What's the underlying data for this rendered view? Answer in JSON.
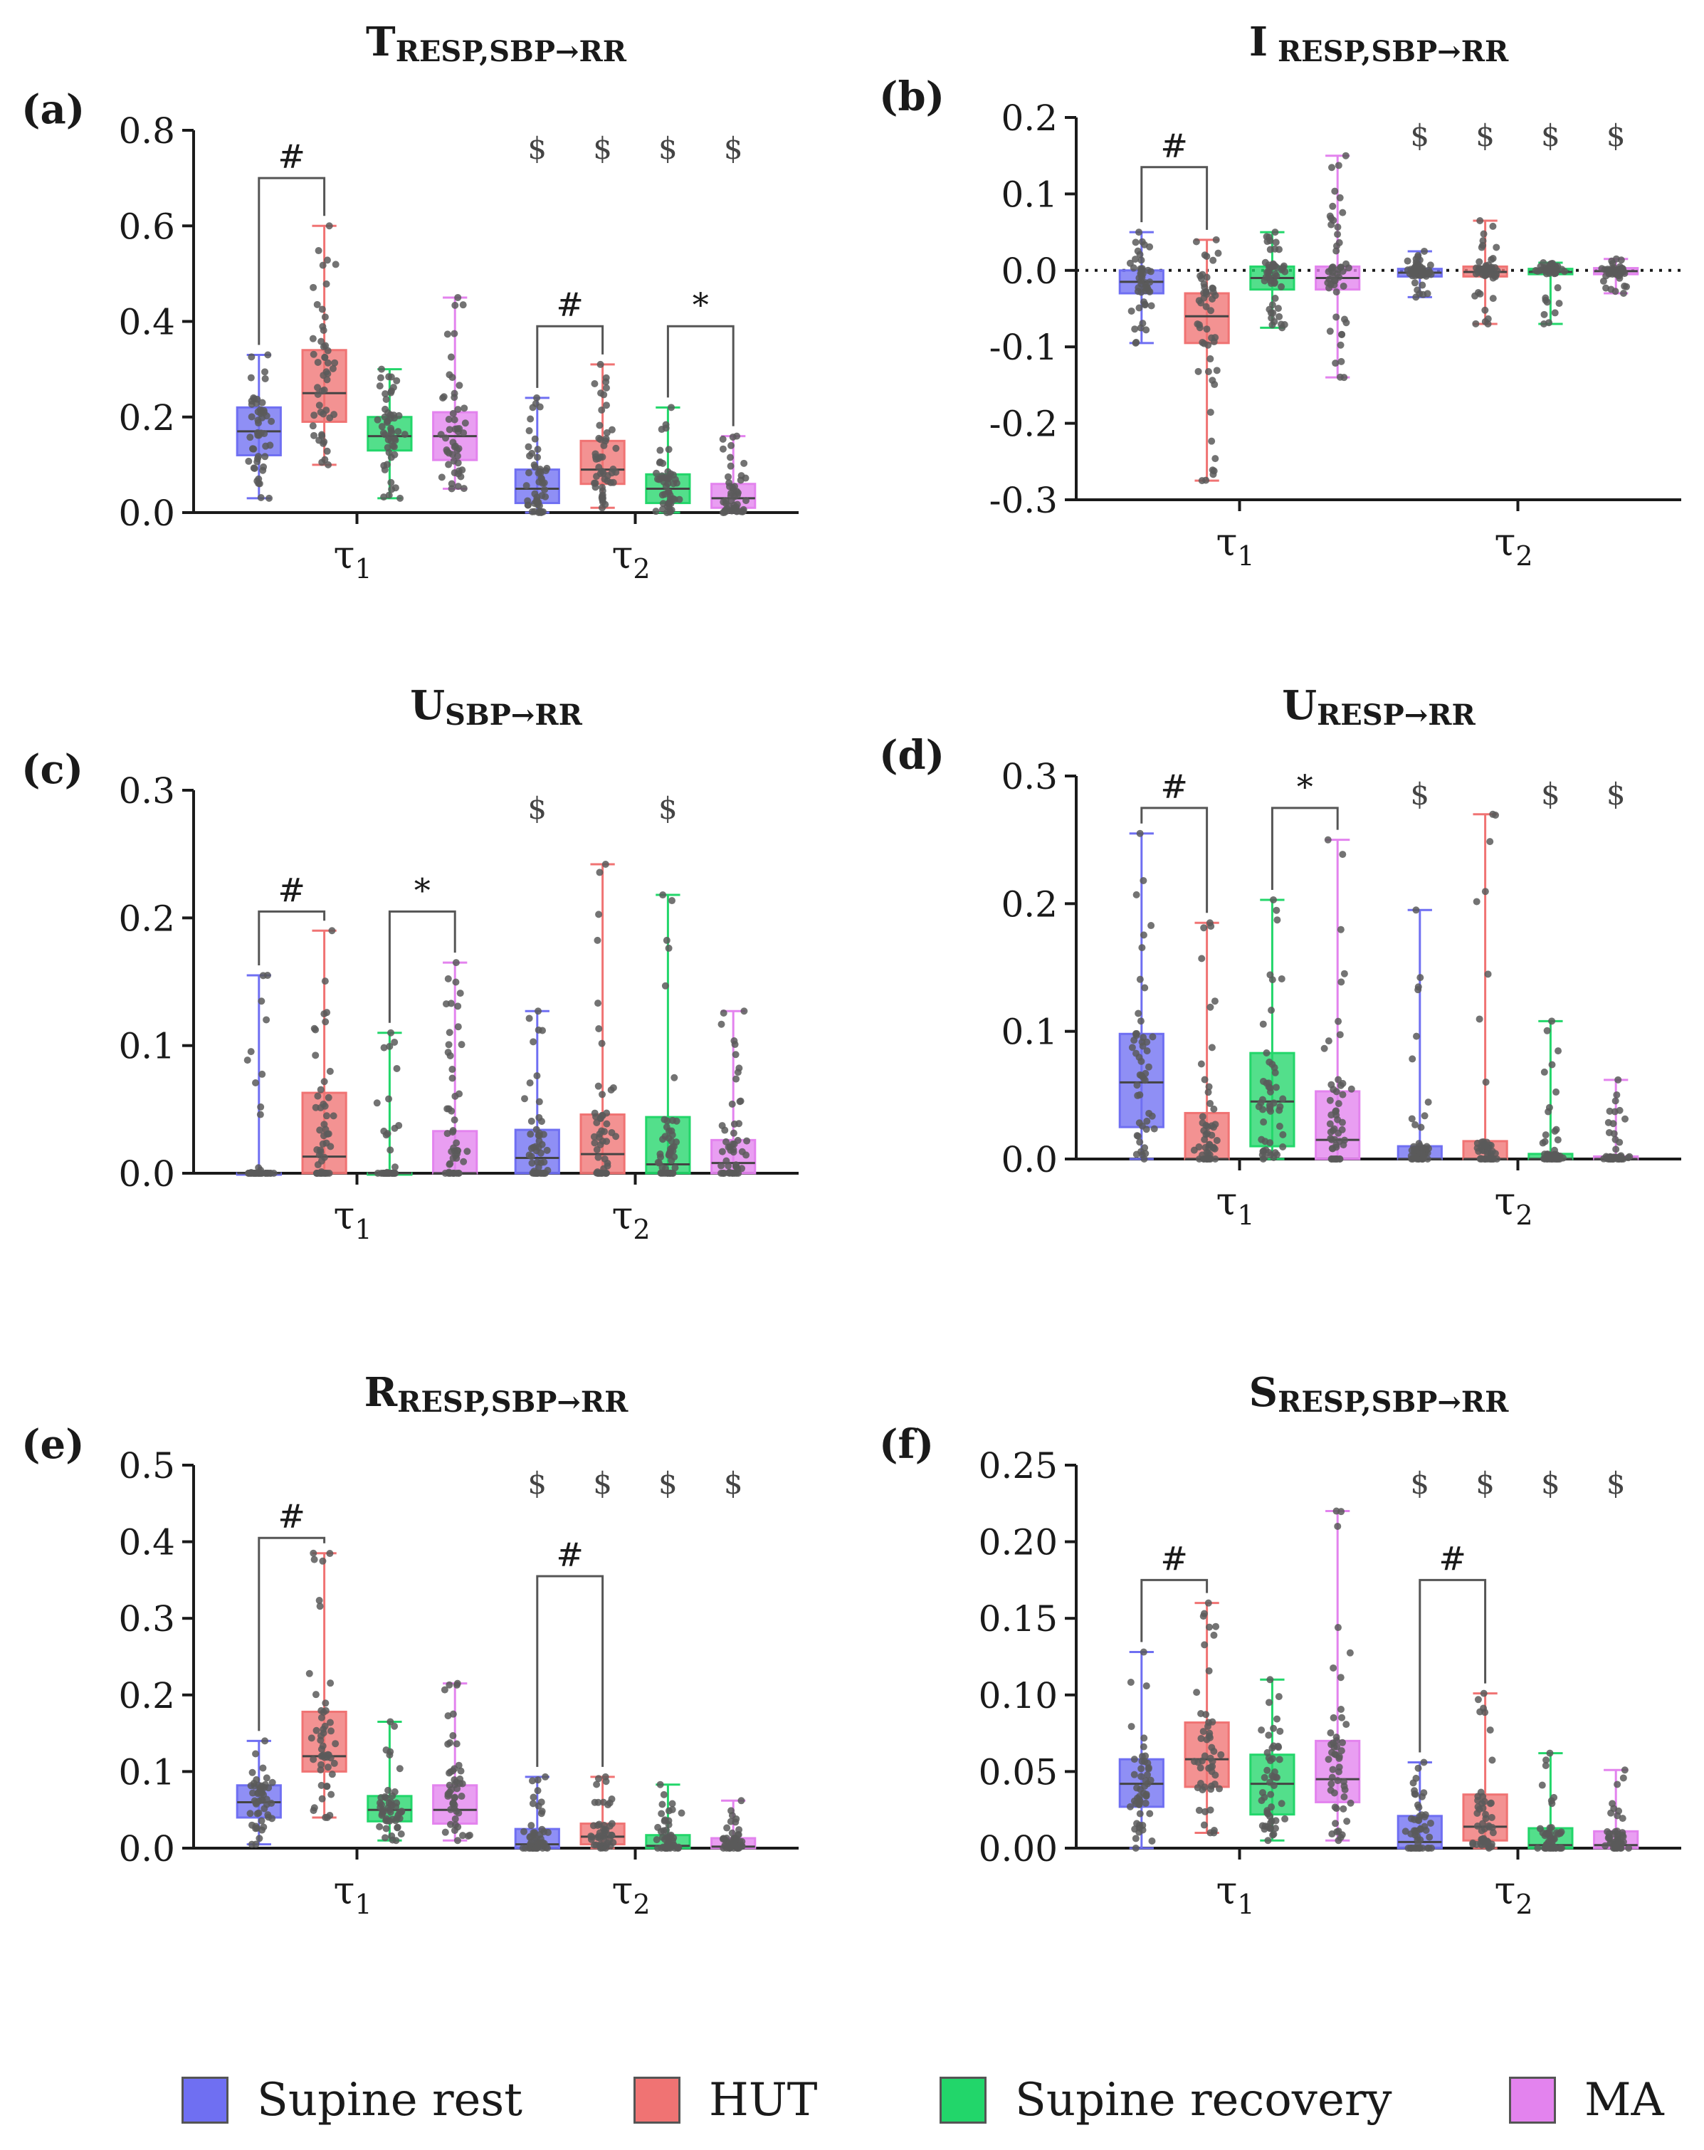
{
  "colors": {
    "supine_rest": "#6f6ff2",
    "hut": "#f07373",
    "supine_recovery": "#22d66a",
    "ma": "#e383ee",
    "points": "#5a5a5a",
    "axis": "#1a1a1a"
  },
  "legend": {
    "items": [
      {
        "label": "Supine rest",
        "color": "#6f6ff2"
      },
      {
        "label": "HUT",
        "color": "#f07373"
      },
      {
        "label": "Supine recovery",
        "color": "#22d66a"
      },
      {
        "label": "MA",
        "color": "#e383ee"
      }
    ]
  },
  "chart_data": [
    {
      "panel": "(a)",
      "title": {
        "main": "T",
        "sub": "RESP,SBP→RR"
      },
      "type": "box",
      "categories": [
        "τ1",
        "τ2"
      ],
      "series": [
        "Supine rest",
        "HUT",
        "Supine recovery",
        "MA"
      ],
      "ylim": [
        0,
        0.8
      ],
      "yticks": [
        "0.0",
        "0.2",
        "0.4",
        "0.6",
        "0.8"
      ],
      "zero_line": false,
      "boxes": [
        [
          {
            "min": 0.03,
            "q1": 0.12,
            "median": 0.17,
            "q3": 0.22,
            "max": 0.33
          },
          {
            "min": 0.1,
            "q1": 0.19,
            "median": 0.25,
            "q3": 0.34,
            "max": 0.6
          },
          {
            "min": 0.03,
            "q1": 0.13,
            "median": 0.16,
            "q3": 0.2,
            "max": 0.3
          },
          {
            "min": 0.05,
            "q1": 0.11,
            "median": 0.16,
            "q3": 0.21,
            "max": 0.45
          }
        ],
        [
          {
            "min": 0.0,
            "q1": 0.02,
            "median": 0.05,
            "q3": 0.09,
            "max": 0.24
          },
          {
            "min": 0.01,
            "q1": 0.06,
            "median": 0.09,
            "q3": 0.15,
            "max": 0.31
          },
          {
            "min": 0.0,
            "q1": 0.02,
            "median": 0.05,
            "q3": 0.08,
            "max": 0.22
          },
          {
            "min": 0.0,
            "q1": 0.01,
            "median": 0.03,
            "q3": 0.06,
            "max": 0.16
          }
        ]
      ],
      "markers": [
        {
          "text": "#",
          "from": [
            0,
            0
          ],
          "to": [
            0,
            1
          ],
          "y": 0.7
        },
        {
          "text": "#",
          "from": [
            1,
            0
          ],
          "to": [
            1,
            1
          ],
          "y": 0.39
        },
        {
          "text": "*",
          "from": [
            1,
            2
          ],
          "to": [
            1,
            3
          ],
          "y": 0.39
        }
      ],
      "dollars": [
        {
          "group": 1,
          "box": 0,
          "text": "$"
        },
        {
          "group": 1,
          "box": 1,
          "text": "$"
        },
        {
          "group": 1,
          "box": 2,
          "text": "$"
        },
        {
          "group": 1,
          "box": 3,
          "text": "$"
        }
      ]
    },
    {
      "panel": "(b)",
      "title": {
        "main": "I",
        "sub": " RESP,SBP→RR"
      },
      "type": "box",
      "categories": [
        "τ1",
        "τ2"
      ],
      "series": [
        "Supine rest",
        "HUT",
        "Supine recovery",
        "MA"
      ],
      "ylim": [
        -0.3,
        0.2
      ],
      "yticks": [
        "-0.3",
        "-0.2",
        "-0.1",
        "0.0",
        "0.1",
        "0.2"
      ],
      "zero_line": true,
      "boxes": [
        [
          {
            "min": -0.095,
            "q1": -0.03,
            "median": -0.015,
            "q3": 0.0,
            "max": 0.05
          },
          {
            "min": -0.275,
            "q1": -0.095,
            "median": -0.06,
            "q3": -0.03,
            "max": 0.04
          },
          {
            "min": -0.075,
            "q1": -0.025,
            "median": -0.01,
            "q3": 0.005,
            "max": 0.05
          },
          {
            "min": -0.14,
            "q1": -0.025,
            "median": -0.01,
            "q3": 0.005,
            "max": 0.15
          }
        ],
        [
          {
            "min": -0.035,
            "q1": -0.008,
            "median": -0.003,
            "q3": 0.002,
            "max": 0.025
          },
          {
            "min": -0.07,
            "q1": -0.008,
            "median": -0.002,
            "q3": 0.005,
            "max": 0.065
          },
          {
            "min": -0.07,
            "q1": -0.005,
            "median": -0.002,
            "q3": 0.002,
            "max": 0.01
          },
          {
            "min": -0.03,
            "q1": -0.005,
            "median": -0.001,
            "q3": 0.003,
            "max": 0.015
          }
        ]
      ],
      "markers": [
        {
          "text": "#",
          "from": [
            0,
            0
          ],
          "to": [
            0,
            1
          ],
          "y": 0.135
        }
      ],
      "dollars": [
        {
          "group": 1,
          "box": 0,
          "text": "$"
        },
        {
          "group": 1,
          "box": 1,
          "text": "$"
        },
        {
          "group": 1,
          "box": 2,
          "text": "$"
        },
        {
          "group": 1,
          "box": 3,
          "text": "$"
        }
      ]
    },
    {
      "panel": "(c)",
      "title": {
        "main": "U",
        "sub": "SBP→RR"
      },
      "type": "box",
      "categories": [
        "τ1",
        "τ2"
      ],
      "series": [
        "Supine rest",
        "HUT",
        "Supine recovery",
        "MA"
      ],
      "ylim": [
        0,
        0.3
      ],
      "yticks": [
        "0.0",
        "0.1",
        "0.2",
        "0.3"
      ],
      "zero_line": false,
      "boxes": [
        [
          {
            "min": 0.0,
            "q1": 0.0,
            "median": 0.0,
            "q3": 0.0,
            "max": 0.155
          },
          {
            "min": 0.0,
            "q1": 0.0,
            "median": 0.013,
            "q3": 0.063,
            "max": 0.19
          },
          {
            "min": 0.0,
            "q1": 0.0,
            "median": 0.0,
            "q3": 0.0,
            "max": 0.11
          },
          {
            "min": 0.0,
            "q1": 0.0,
            "median": 0.0,
            "q3": 0.033,
            "max": 0.165
          }
        ],
        [
          {
            "min": 0.0,
            "q1": 0.0,
            "median": 0.012,
            "q3": 0.034,
            "max": 0.127
          },
          {
            "min": 0.0,
            "q1": 0.0,
            "median": 0.015,
            "q3": 0.046,
            "max": 0.242
          },
          {
            "min": 0.0,
            "q1": 0.0,
            "median": 0.007,
            "q3": 0.044,
            "max": 0.218
          },
          {
            "min": 0.0,
            "q1": 0.0,
            "median": 0.008,
            "q3": 0.026,
            "max": 0.127
          }
        ]
      ],
      "markers": [
        {
          "text": "#",
          "from": [
            0,
            0
          ],
          "to": [
            0,
            1
          ],
          "y": 0.205
        },
        {
          "text": "*",
          "from": [
            0,
            2
          ],
          "to": [
            0,
            3
          ],
          "y": 0.205
        }
      ],
      "dollars": [
        {
          "group": 1,
          "box": 0,
          "text": "$"
        },
        {
          "group": 1,
          "box": 2,
          "text": "$"
        }
      ]
    },
    {
      "panel": "(d)",
      "title": {
        "main": "U",
        "sub": "RESP→RR"
      },
      "type": "box",
      "categories": [
        "τ1",
        "τ2"
      ],
      "series": [
        "Supine rest",
        "HUT",
        "Supine recovery",
        "MA"
      ],
      "ylim": [
        0,
        0.3
      ],
      "yticks": [
        "0.0",
        "0.1",
        "0.2",
        "0.3"
      ],
      "zero_line": false,
      "boxes": [
        [
          {
            "min": 0.0,
            "q1": 0.025,
            "median": 0.06,
            "q3": 0.098,
            "max": 0.255
          },
          {
            "min": 0.0,
            "q1": 0.0,
            "median": 0.0,
            "q3": 0.036,
            "max": 0.185
          },
          {
            "min": 0.0,
            "q1": 0.01,
            "median": 0.045,
            "q3": 0.083,
            "max": 0.203
          },
          {
            "min": 0.0,
            "q1": 0.0,
            "median": 0.015,
            "q3": 0.053,
            "max": 0.25
          }
        ],
        [
          {
            "min": 0.0,
            "q1": 0.0,
            "median": 0.0,
            "q3": 0.01,
            "max": 0.195
          },
          {
            "min": 0.0,
            "q1": 0.0,
            "median": 0.0,
            "q3": 0.014,
            "max": 0.27
          },
          {
            "min": 0.0,
            "q1": 0.0,
            "median": 0.0,
            "q3": 0.004,
            "max": 0.108
          },
          {
            "min": 0.0,
            "q1": 0.0,
            "median": 0.0,
            "q3": 0.002,
            "max": 0.062
          }
        ]
      ],
      "markers": [
        {
          "text": "#",
          "from": [
            0,
            0
          ],
          "to": [
            0,
            1
          ],
          "y": 0.275
        },
        {
          "text": "*",
          "from": [
            0,
            2
          ],
          "to": [
            0,
            3
          ],
          "y": 0.275
        }
      ],
      "dollars": [
        {
          "group": 1,
          "box": 0,
          "text": "$"
        },
        {
          "group": 1,
          "box": 2,
          "text": "$"
        },
        {
          "group": 1,
          "box": 3,
          "text": "$"
        }
      ]
    },
    {
      "panel": "(e)",
      "title": {
        "main": "R",
        "sub": "RESP,SBP→RR"
      },
      "type": "box",
      "categories": [
        "τ1",
        "τ2"
      ],
      "series": [
        "Supine rest",
        "HUT",
        "Supine recovery",
        "MA"
      ],
      "ylim": [
        0,
        0.5
      ],
      "yticks": [
        "0.0",
        "0.1",
        "0.2",
        "0.3",
        "0.4",
        "0.5"
      ],
      "zero_line": false,
      "boxes": [
        [
          {
            "min": 0.005,
            "q1": 0.04,
            "median": 0.06,
            "q3": 0.082,
            "max": 0.14
          },
          {
            "min": 0.04,
            "q1": 0.1,
            "median": 0.12,
            "q3": 0.178,
            "max": 0.385
          },
          {
            "min": 0.01,
            "q1": 0.035,
            "median": 0.05,
            "q3": 0.068,
            "max": 0.165
          },
          {
            "min": 0.01,
            "q1": 0.032,
            "median": 0.05,
            "q3": 0.082,
            "max": 0.215
          }
        ],
        [
          {
            "min": 0.0,
            "q1": 0.0,
            "median": 0.005,
            "q3": 0.025,
            "max": 0.093
          },
          {
            "min": 0.0,
            "q1": 0.005,
            "median": 0.015,
            "q3": 0.032,
            "max": 0.093
          },
          {
            "min": 0.0,
            "q1": 0.0,
            "median": 0.003,
            "q3": 0.017,
            "max": 0.083
          },
          {
            "min": 0.0,
            "q1": 0.0,
            "median": 0.002,
            "q3": 0.013,
            "max": 0.062
          }
        ]
      ],
      "markers": [
        {
          "text": "#",
          "from": [
            0,
            0
          ],
          "to": [
            0,
            1
          ],
          "y": 0.405
        },
        {
          "text": "#",
          "from": [
            1,
            0
          ],
          "to": [
            1,
            1
          ],
          "y": 0.355
        }
      ],
      "dollars": [
        {
          "group": 1,
          "box": 0,
          "text": "$"
        },
        {
          "group": 1,
          "box": 1,
          "text": "$"
        },
        {
          "group": 1,
          "box": 2,
          "text": "$"
        },
        {
          "group": 1,
          "box": 3,
          "text": "$"
        }
      ]
    },
    {
      "panel": "(f)",
      "title": {
        "main": "S",
        "sub": "RESP,SBP→RR"
      },
      "type": "box",
      "categories": [
        "τ1",
        "τ2"
      ],
      "series": [
        "Supine rest",
        "HUT",
        "Supine recovery",
        "MA"
      ],
      "ylim": [
        0,
        0.25
      ],
      "yticks": [
        "0.00",
        "0.05",
        "0.10",
        "0.15",
        "0.20",
        "0.25"
      ],
      "zero_line": false,
      "boxes": [
        [
          {
            "min": 0.0,
            "q1": 0.027,
            "median": 0.042,
            "q3": 0.058,
            "max": 0.128
          },
          {
            "min": 0.01,
            "q1": 0.04,
            "median": 0.058,
            "q3": 0.082,
            "max": 0.16
          },
          {
            "min": 0.005,
            "q1": 0.022,
            "median": 0.042,
            "q3": 0.061,
            "max": 0.11
          },
          {
            "min": 0.005,
            "q1": 0.03,
            "median": 0.045,
            "q3": 0.07,
            "max": 0.22
          }
        ],
        [
          {
            "min": 0.0,
            "q1": 0.0,
            "median": 0.004,
            "q3": 0.021,
            "max": 0.056
          },
          {
            "min": 0.0,
            "q1": 0.005,
            "median": 0.014,
            "q3": 0.035,
            "max": 0.101
          },
          {
            "min": 0.0,
            "q1": 0.0,
            "median": 0.002,
            "q3": 0.013,
            "max": 0.062
          },
          {
            "min": 0.0,
            "q1": 0.0,
            "median": 0.002,
            "q3": 0.011,
            "max": 0.051
          }
        ]
      ],
      "markers": [
        {
          "text": "#",
          "from": [
            0,
            0
          ],
          "to": [
            0,
            1
          ],
          "y": 0.175
        },
        {
          "text": "#",
          "from": [
            1,
            0
          ],
          "to": [
            1,
            1
          ],
          "y": 0.175
        }
      ],
      "dollars": [
        {
          "group": 1,
          "box": 0,
          "text": "$"
        },
        {
          "group": 1,
          "box": 1,
          "text": "$"
        },
        {
          "group": 1,
          "box": 2,
          "text": "$"
        },
        {
          "group": 1,
          "box": 3,
          "text": "$"
        }
      ]
    }
  ]
}
